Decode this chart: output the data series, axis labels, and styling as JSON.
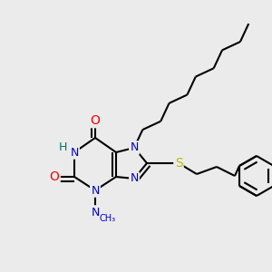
{
  "bg_color": "#ebebeb",
  "atom_colors": {
    "C": "#000000",
    "N": "#0000cc",
    "O": "#ff0000",
    "S": "#bbbb00",
    "H": "#007070"
  },
  "bond_color": "#000000",
  "bond_width": 1.5
}
